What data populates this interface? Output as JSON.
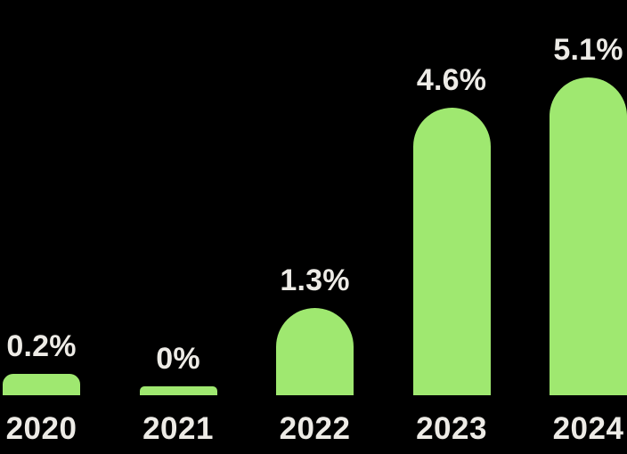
{
  "chart_data": {
    "type": "bar",
    "title": "",
    "xlabel": "",
    "ylabel": "",
    "categories": [
      "2020",
      "2021",
      "2022",
      "2023",
      "2024"
    ],
    "values": [
      0.2,
      0,
      1.3,
      4.6,
      5.1
    ],
    "value_labels": [
      "0.2%",
      "0%",
      "1.3%",
      "4.6%",
      "5.1%"
    ],
    "ylim": [
      0,
      5.5
    ],
    "grid": false,
    "legend": "none",
    "bar_shape": "rounded-top-capsule",
    "colors": {
      "background": "#000000",
      "bar": "#9FE870",
      "label_text": "#EDEBE6"
    }
  }
}
